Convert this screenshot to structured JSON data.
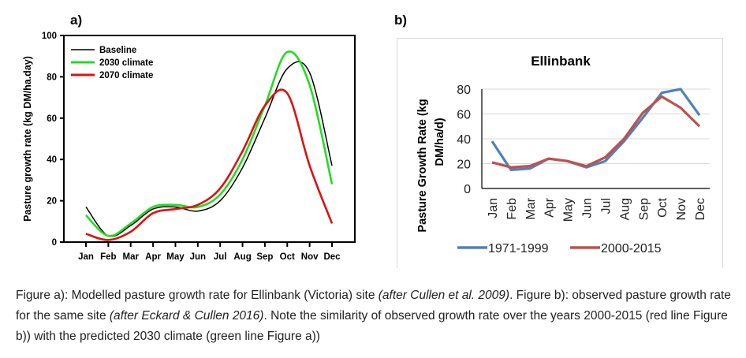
{
  "panel_labels": {
    "a": "a)",
    "b": "b)"
  },
  "chart_data": [
    {
      "id": "a",
      "type": "line",
      "title": "",
      "xlabel": "",
      "ylabel": "Pasture growth rate (kg DM/ha.day)",
      "categories": [
        "Jan",
        "Feb",
        "Mar",
        "Apr",
        "May",
        "Jun",
        "Jul",
        "Aug",
        "Sep",
        "Oct",
        "Nov",
        "Dec"
      ],
      "ylim": [
        0,
        100
      ],
      "yticks": [
        0,
        20,
        40,
        60,
        80,
        100
      ],
      "grid": false,
      "legend": "top-left",
      "smooth": true,
      "series": [
        {
          "name": "Baseline",
          "color": "#000000",
          "values": [
            17,
            3,
            8,
            16,
            17,
            15,
            20,
            36,
            60,
            84,
            82,
            37
          ]
        },
        {
          "name": "2030 climate",
          "color": "#22dd22",
          "values": [
            13,
            3,
            9,
            17,
            18,
            17,
            23,
            40,
            66,
            92,
            76,
            28
          ]
        },
        {
          "name": "2070 climate",
          "color": "#dd1111",
          "values": [
            4,
            1,
            5,
            14,
            16,
            18,
            26,
            44,
            66,
            72,
            37,
            9
          ]
        }
      ]
    },
    {
      "id": "b",
      "type": "line",
      "title": "Ellinbank",
      "xlabel": "",
      "ylabel": "Pasture Growth Rate (kg DM/ha/d)",
      "ylabel_lines": [
        "Pasture Growth Rate (kg",
        "DM/ha/d)"
      ],
      "categories": [
        "Jan",
        "Feb",
        "Mar",
        "Apr",
        "May",
        "Jun",
        "Jul",
        "Aug",
        "Sep",
        "Oct",
        "Nov",
        "Dec"
      ],
      "ylim": [
        0,
        80
      ],
      "yticks": [
        0,
        20,
        40,
        60,
        80
      ],
      "grid": true,
      "legend": "bottom",
      "series": [
        {
          "name": "1971-1999",
          "color": "#4f81bd",
          "values": [
            38,
            15,
            16,
            24,
            22,
            17,
            22,
            38,
            57,
            77,
            80,
            59
          ]
        },
        {
          "name": "2000-2015",
          "color": "#c0504d",
          "values": [
            21,
            17,
            18,
            24,
            22,
            18,
            25,
            40,
            61,
            74,
            65,
            50
          ]
        }
      ]
    }
  ],
  "caption": {
    "parts": [
      {
        "text": "Figure a): Modelled pasture growth rate for Ellinbank (Victoria) site ",
        "italic": false
      },
      {
        "text": "(after Cullen et al. 2009)",
        "italic": true
      },
      {
        "text": ". Figure b): observed pasture growth rate for the same site ",
        "italic": false
      },
      {
        "text": "(after Eckard & Cullen 2016)",
        "italic": true
      },
      {
        "text": ". Note the similarity of observed growth rate over the years 2000-2015 (red line Figure b)) with the predicted 2030 climate (green line Figure a))",
        "italic": false
      }
    ]
  }
}
